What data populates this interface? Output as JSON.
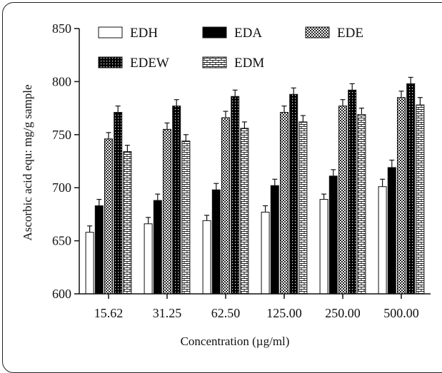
{
  "chart_data": {
    "type": "bar",
    "xlabel": "Concentration (µg/ml)",
    "ylabel": "Ascorbic acid equ: mg/g sample",
    "ylim": [
      600,
      850
    ],
    "yticks": [
      "600",
      "650",
      "700",
      "750",
      "800",
      "850"
    ],
    "categories": [
      "15.62",
      "31.25",
      "62.50",
      "125.00",
      "250.00",
      "500.00"
    ],
    "legend_position": "top-left",
    "series": [
      {
        "name": "EDH",
        "pattern": "white",
        "values": [
          658,
          666,
          669,
          677,
          689,
          701
        ],
        "errors": [
          6,
          6,
          5,
          6,
          5,
          7
        ]
      },
      {
        "name": "EDA",
        "pattern": "solid-black",
        "values": [
          683,
          688,
          698,
          702,
          711,
          719
        ],
        "errors": [
          6,
          6,
          6,
          6,
          6,
          7
        ]
      },
      {
        "name": "EDE",
        "pattern": "checker",
        "values": [
          746,
          755,
          766,
          771,
          777,
          785
        ],
        "errors": [
          6,
          6,
          6,
          6,
          6,
          6
        ]
      },
      {
        "name": "EDEW",
        "pattern": "black-dotted",
        "values": [
          771,
          777,
          786,
          788,
          792,
          798
        ],
        "errors": [
          6,
          6,
          6,
          6,
          6,
          6
        ]
      },
      {
        "name": "EDM",
        "pattern": "brick",
        "values": [
          734,
          744,
          756,
          762,
          769,
          778
        ],
        "errors": [
          6,
          6,
          6,
          6,
          6,
          7
        ]
      }
    ]
  }
}
